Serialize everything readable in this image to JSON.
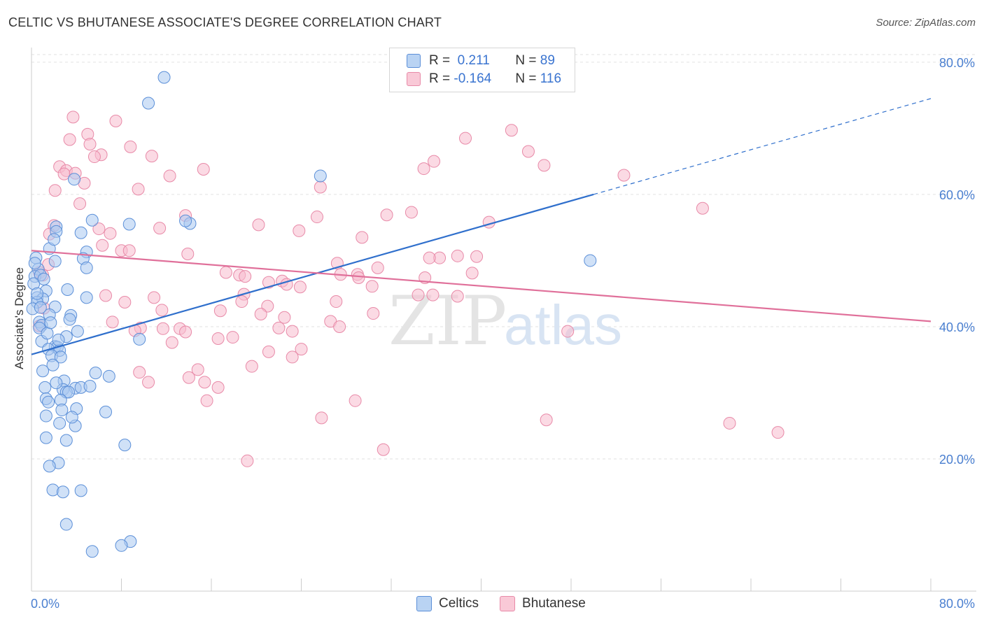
{
  "title": "CELTIC VS BHUTANESE ASSOCIATE'S DEGREE CORRELATION CHART",
  "source": "Source: ZipAtlas.com",
  "colors": {
    "celtics_fill": "#a9c8f0",
    "celtics_stroke": "#5b8fd8",
    "celtics_line": "#2f6fcc",
    "bhutanese_fill": "#f7bccd",
    "bhutanese_stroke": "#e88aa8",
    "bhutanese_line": "#e0709a",
    "tick": "#4a7fd0",
    "grid": "#e2e2e2"
  },
  "legend": {
    "rows": [
      {
        "r_label": "R = ",
        "r_value": " 0.211",
        "n_label": "N = ",
        "n_value": "89"
      },
      {
        "r_label": "R = ",
        "r_value": "-0.164",
        "n_label": "N = ",
        "n_value": "116"
      }
    ]
  },
  "bottom_legend": [
    "Celtics",
    "Bhutanese"
  ],
  "watermark": {
    "zip": "ZIP",
    "atlas": "atlas"
  },
  "chart_data": {
    "type": "scatter",
    "title": "CELTIC VS BHUTANESE ASSOCIATE'S DEGREE CORRELATION CHART",
    "xlabel": "",
    "ylabel": "Associate's Degree",
    "xlim": [
      0,
      80
    ],
    "ylim": [
      0,
      82
    ],
    "x_tick_labels": [
      "0.0%",
      "80.0%"
    ],
    "y_ticks": [
      20,
      40,
      60,
      80
    ],
    "y_tick_labels": [
      "20.0%",
      "40.0%",
      "60.0%",
      "80.0%"
    ],
    "grid": true,
    "series": [
      {
        "name": "Celtics",
        "R": 0.211,
        "N": 89,
        "trend": {
          "x": [
            0,
            50
          ],
          "y": [
            35.8,
            60.0
          ],
          "dashed_to": [
            80,
            74.5
          ]
        },
        "points": [
          [
            11.8,
            77.7
          ],
          [
            10.4,
            73.8
          ],
          [
            25.7,
            62.8
          ],
          [
            3.8,
            62.3
          ],
          [
            14.1,
            55.6
          ],
          [
            8.7,
            55.5
          ],
          [
            5.4,
            56.1
          ],
          [
            13.7,
            56.0
          ],
          [
            2.2,
            55.1
          ],
          [
            2.2,
            54.4
          ],
          [
            4.4,
            54.2
          ],
          [
            1.6,
            51.8
          ],
          [
            4.9,
            51.3
          ],
          [
            0.4,
            50.4
          ],
          [
            4.6,
            50.3
          ],
          [
            2.1,
            49.9
          ],
          [
            49.7,
            50.0
          ],
          [
            0.6,
            48.7
          ],
          [
            4.9,
            48.9
          ],
          [
            0.3,
            47.6
          ],
          [
            0.8,
            47.8
          ],
          [
            0.2,
            46.5
          ],
          [
            1.3,
            45.4
          ],
          [
            0.5,
            44.4
          ],
          [
            1.0,
            44.2
          ],
          [
            4.9,
            44.4
          ],
          [
            0.5,
            43.7
          ],
          [
            2.1,
            43.0
          ],
          [
            0.1,
            42.7
          ],
          [
            1.6,
            41.8
          ],
          [
            3.5,
            41.7
          ],
          [
            3.4,
            41.1
          ],
          [
            0.7,
            40.7
          ],
          [
            0.9,
            40.2
          ],
          [
            0.7,
            39.8
          ],
          [
            4.1,
            39.3
          ],
          [
            3.1,
            38.5
          ],
          [
            9.6,
            38.1
          ],
          [
            0.9,
            37.8
          ],
          [
            2.1,
            37.0
          ],
          [
            2.3,
            36.9
          ],
          [
            1.5,
            36.6
          ],
          [
            2.5,
            36.4
          ],
          [
            1.8,
            35.6
          ],
          [
            2.6,
            35.4
          ],
          [
            5.7,
            33.0
          ],
          [
            1.0,
            33.3
          ],
          [
            6.9,
            32.5
          ],
          [
            2.9,
            31.8
          ],
          [
            1.2,
            30.8
          ],
          [
            3.9,
            30.7
          ],
          [
            2.8,
            30.5
          ],
          [
            4.4,
            30.8
          ],
          [
            3.1,
            30.1
          ],
          [
            3.3,
            30.1
          ],
          [
            5.2,
            31.0
          ],
          [
            1.3,
            29.1
          ],
          [
            1.5,
            28.6
          ],
          [
            2.6,
            28.9
          ],
          [
            4.0,
            27.6
          ],
          [
            2.7,
            27.4
          ],
          [
            6.6,
            27.1
          ],
          [
            1.3,
            26.5
          ],
          [
            2.5,
            25.4
          ],
          [
            3.9,
            25.0
          ],
          [
            1.3,
            23.2
          ],
          [
            3.1,
            22.8
          ],
          [
            8.3,
            22.1
          ],
          [
            2.4,
            19.4
          ],
          [
            1.6,
            18.9
          ],
          [
            1.9,
            15.3
          ],
          [
            2.8,
            15.0
          ],
          [
            4.4,
            15.2
          ],
          [
            3.1,
            10.1
          ],
          [
            8.8,
            7.5
          ],
          [
            8.0,
            6.9
          ],
          [
            5.4,
            6.0
          ],
          [
            0.5,
            45.0
          ],
          [
            1.4,
            39.0
          ],
          [
            0.8,
            42.9
          ],
          [
            2.0,
            53.2
          ],
          [
            0.3,
            49.6
          ],
          [
            1.1,
            47.2
          ],
          [
            3.2,
            45.6
          ],
          [
            1.7,
            40.6
          ],
          [
            2.4,
            38.0
          ],
          [
            1.9,
            34.2
          ],
          [
            3.6,
            26.3
          ],
          [
            2.2,
            31.5
          ]
        ]
      },
      {
        "name": "Bhutanese",
        "R": -0.164,
        "N": 116,
        "trend": {
          "x": [
            0,
            80
          ],
          "y": [
            51.5,
            40.8
          ]
        },
        "points": [
          [
            3.7,
            71.7
          ],
          [
            7.5,
            71.1
          ],
          [
            42.7,
            69.7
          ],
          [
            5.0,
            69.1
          ],
          [
            3.4,
            68.3
          ],
          [
            38.6,
            68.5
          ],
          [
            8.8,
            67.2
          ],
          [
            5.2,
            67.6
          ],
          [
            44.2,
            66.5
          ],
          [
            10.7,
            65.8
          ],
          [
            6.2,
            66.0
          ],
          [
            5.6,
            65.7
          ],
          [
            35.8,
            65.0
          ],
          [
            2.5,
            64.2
          ],
          [
            3.1,
            63.6
          ],
          [
            15.3,
            63.8
          ],
          [
            34.9,
            63.9
          ],
          [
            45.6,
            64.4
          ],
          [
            12.3,
            62.8
          ],
          [
            2.9,
            63.1
          ],
          [
            52.7,
            62.9
          ],
          [
            4.7,
            61.7
          ],
          [
            9.5,
            60.8
          ],
          [
            25.7,
            61.1
          ],
          [
            2.1,
            60.6
          ],
          [
            4.3,
            58.6
          ],
          [
            59.7,
            57.9
          ],
          [
            33.8,
            57.3
          ],
          [
            13.7,
            56.8
          ],
          [
            31.6,
            56.9
          ],
          [
            25.4,
            56.6
          ],
          [
            20.2,
            55.4
          ],
          [
            2.0,
            55.3
          ],
          [
            40.7,
            55.8
          ],
          [
            11.4,
            54.9
          ],
          [
            6.0,
            54.8
          ],
          [
            23.8,
            54.5
          ],
          [
            1.6,
            54.0
          ],
          [
            7.0,
            54.1
          ],
          [
            29.4,
            53.5
          ],
          [
            6.3,
            52.3
          ],
          [
            8.0,
            51.5
          ],
          [
            8.7,
            51.5
          ],
          [
            13.9,
            51.0
          ],
          [
            37.9,
            50.7
          ],
          [
            36.3,
            50.4
          ],
          [
            39.6,
            50.6
          ],
          [
            35.4,
            50.4
          ],
          [
            1.5,
            49.4
          ],
          [
            27.2,
            49.6
          ],
          [
            30.8,
            48.9
          ],
          [
            0.7,
            48.2
          ],
          [
            39.2,
            48.1
          ],
          [
            17.3,
            48.2
          ],
          [
            27.5,
            47.9
          ],
          [
            1.0,
            47.8
          ],
          [
            29.0,
            47.9
          ],
          [
            18.5,
            47.8
          ],
          [
            35.0,
            47.4
          ],
          [
            19.0,
            47.6
          ],
          [
            29.1,
            47.4
          ],
          [
            21.1,
            46.7
          ],
          [
            22.3,
            46.9
          ],
          [
            22.7,
            46.4
          ],
          [
            30.3,
            46.1
          ],
          [
            23.9,
            46.0
          ],
          [
            18.9,
            44.9
          ],
          [
            6.6,
            44.7
          ],
          [
            10.9,
            44.4
          ],
          [
            34.4,
            44.8
          ],
          [
            35.7,
            44.8
          ],
          [
            37.9,
            44.6
          ],
          [
            16.8,
            42.4
          ],
          [
            8.3,
            43.7
          ],
          [
            27.1,
            43.8
          ],
          [
            18.7,
            43.8
          ],
          [
            21.0,
            43.1
          ],
          [
            11.6,
            42.5
          ],
          [
            20.4,
            41.9
          ],
          [
            30.4,
            42.0
          ],
          [
            26.6,
            40.8
          ],
          [
            22.5,
            41.4
          ],
          [
            7.2,
            40.7
          ],
          [
            27.4,
            40.0
          ],
          [
            9.7,
            39.8
          ],
          [
            11.7,
            39.7
          ],
          [
            13.2,
            39.7
          ],
          [
            22.0,
            39.8
          ],
          [
            23.2,
            39.3
          ],
          [
            13.7,
            39.2
          ],
          [
            9.2,
            39.4
          ],
          [
            47.7,
            39.3
          ],
          [
            16.6,
            38.2
          ],
          [
            17.9,
            38.4
          ],
          [
            12.5,
            37.6
          ],
          [
            24.0,
            36.6
          ],
          [
            21.1,
            36.2
          ],
          [
            23.2,
            35.4
          ],
          [
            19.6,
            34.0
          ],
          [
            14.8,
            33.5
          ],
          [
            9.6,
            33.1
          ],
          [
            14.0,
            32.3
          ],
          [
            10.4,
            31.6
          ],
          [
            15.4,
            31.6
          ],
          [
            16.6,
            30.8
          ],
          [
            15.6,
            28.8
          ],
          [
            28.8,
            28.8
          ],
          [
            25.8,
            26.2
          ],
          [
            45.8,
            25.9
          ],
          [
            66.4,
            24.0
          ],
          [
            62.1,
            25.4
          ],
          [
            31.3,
            21.4
          ],
          [
            19.2,
            19.7
          ],
          [
            0.7,
            40.1
          ],
          [
            1.1,
            42.8
          ],
          [
            3.9,
            63.2
          ]
        ]
      }
    ]
  }
}
